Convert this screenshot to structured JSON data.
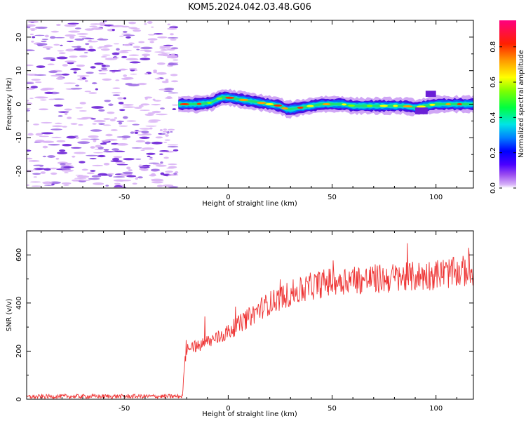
{
  "title": "KOM5.2024.042.03.48.G06",
  "colors": {
    "snr_line": "#ee3333",
    "axes": "#000000",
    "noise_light": "#d9b3f5",
    "noise_mid": "#a070e6",
    "noise_dark": "#6a1fd6"
  },
  "chart_data": [
    {
      "type": "heatmap",
      "xlabel": "Height of straight line (km)",
      "ylabel": "Frequency (Hz)",
      "xlim": [
        -97,
        118
      ],
      "ylim": [
        -25,
        25
      ],
      "xticks": [
        -50,
        0,
        50,
        100
      ],
      "yticks": [
        -20,
        -10,
        0,
        10,
        20
      ],
      "colorbar": {
        "label": "Normalized spectral amplitude",
        "range": [
          0,
          0.95
        ],
        "ticks": [
          0.0,
          0.2,
          0.4,
          0.6,
          0.8
        ],
        "tick_labels": [
          "0.0",
          "0.2",
          "0.4",
          "0.6",
          "0.8"
        ]
      },
      "signal_onset_km": -24,
      "ridge_frequency_hz": {
        "x": [
          -24,
          -15,
          -8,
          -5,
          -3,
          0,
          5,
          10,
          15,
          20,
          25,
          28,
          30,
          35,
          40,
          45,
          50,
          55,
          60,
          65,
          70,
          75,
          80,
          85,
          90,
          95,
          100,
          105,
          110,
          118
        ],
        "y": [
          0,
          0,
          0.5,
          1.5,
          2,
          2,
          1.5,
          1,
          0.5,
          0,
          -0.5,
          -1.5,
          -1.5,
          -1,
          -0.5,
          0,
          0,
          0,
          -0.5,
          -0.5,
          -0.5,
          -0.5,
          -0.5,
          -0.5,
          -1,
          -0.5,
          0,
          0,
          0,
          0
        ]
      }
    },
    {
      "type": "line",
      "xlabel": "Height of straight line (km)",
      "ylabel": "SNR (v/v)",
      "xlim": [
        -97,
        118
      ],
      "ylim": [
        0,
        700
      ],
      "xticks": [
        -50,
        0,
        50,
        100
      ],
      "yticks": [
        0,
        200,
        400,
        600
      ],
      "series": [
        {
          "x": [
            -97,
            -80,
            -60,
            -40,
            -22,
            -21,
            -20,
            -18,
            -15,
            -12,
            -10,
            -5,
            0,
            5,
            10,
            15,
            20,
            25,
            30,
            35,
            40,
            45,
            50,
            55,
            60,
            65,
            70,
            75,
            80,
            85,
            90,
            95,
            100,
            105,
            110,
            115,
            118
          ],
          "y": [
            10,
            12,
            12,
            12,
            12,
            150,
            200,
            230,
            215,
            230,
            240,
            255,
            280,
            310,
            340,
            375,
            400,
            420,
            440,
            450,
            470,
            480,
            490,
            495,
            500,
            495,
            500,
            500,
            505,
            505,
            510,
            515,
            520,
            525,
            525,
            535,
            535
          ]
        }
      ]
    }
  ]
}
